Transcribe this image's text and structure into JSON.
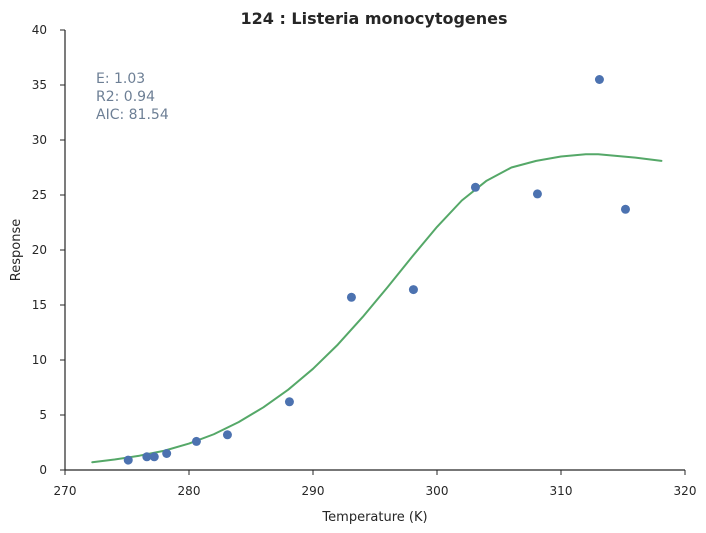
{
  "chart_data": {
    "type": "scatter",
    "title": "124 : Listeria monocytogenes",
    "xlabel": "Temperature (K)",
    "ylabel": "Response",
    "xlim": [
      270,
      320
    ],
    "ylim": [
      0,
      40
    ],
    "xticks": [
      "270",
      "280",
      "290",
      "300",
      "310",
      "320"
    ],
    "yticks": [
      "0",
      "5",
      "10",
      "15",
      "20",
      "25",
      "30",
      "35",
      "40"
    ],
    "grid": false,
    "annotations": [
      "E:  1.03",
      "R2:  0.94",
      "AIC: 81.54"
    ],
    "colors": {
      "points": "#4c72b0",
      "fit": "#55a868",
      "annotation": "#6d7f95",
      "axis": "#262626"
    },
    "series": [
      {
        "type": "scatter",
        "x": [
          275.1,
          276.6,
          277.2,
          278.2,
          280.6,
          283.1,
          288.1,
          293.1,
          298.1,
          303.1,
          308.1,
          313.1,
          315.2
        ],
        "y": [
          0.9,
          1.2,
          1.2,
          1.5,
          2.6,
          3.2,
          6.2,
          15.7,
          16.4,
          25.7,
          25.1,
          35.5,
          23.7
        ]
      },
      {
        "type": "line",
        "x": [
          272.2,
          274,
          276,
          278,
          280,
          282,
          284,
          286,
          288,
          290,
          292,
          294,
          296,
          298,
          300,
          302,
          304,
          306,
          308,
          310,
          312,
          313,
          314,
          316,
          318.1
        ],
        "y": [
          0.7,
          0.95,
          1.3,
          1.75,
          2.4,
          3.25,
          4.35,
          5.7,
          7.3,
          9.2,
          11.4,
          13.9,
          16.6,
          19.4,
          22.1,
          24.5,
          26.3,
          27.5,
          28.1,
          28.5,
          28.7,
          28.7,
          28.6,
          28.4,
          28.1
        ]
      }
    ]
  }
}
